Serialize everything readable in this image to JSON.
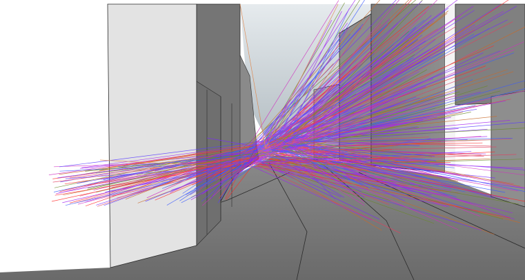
{
  "scene": {
    "description_visible_text": "",
    "colors": {
      "background": "#ffffff",
      "sky_top": "#dfe6ea",
      "sky_bottom": "#b9c3c9",
      "wall_light": "#e4e4e4",
      "wall_mid": "#9a9a9a",
      "wall_dark": "#6e6e6e",
      "ground": "#7a7a7a",
      "edge": "#2a2a2a"
    },
    "ray_colors": [
      "#7a28ff",
      "#a020f0",
      "#5a3cff",
      "#ff2a2a",
      "#e04060",
      "#6a8a2a",
      "#c86a2a",
      "#3a5aff",
      "#d030c0"
    ],
    "ray_count": 420,
    "seed": 7
  }
}
